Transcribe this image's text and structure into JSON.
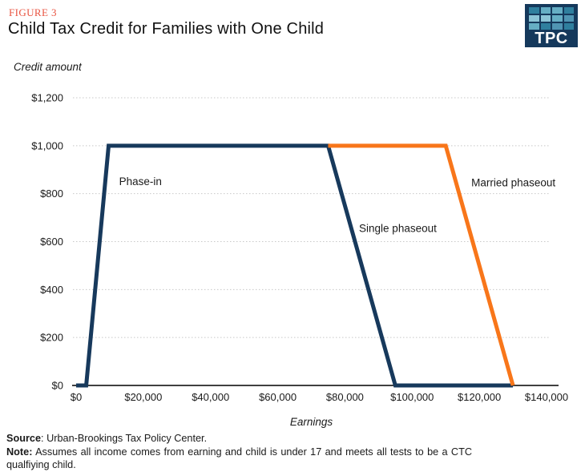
{
  "figure_label": "FIGURE 3",
  "title": "Child Tax Credit for Families with One Child",
  "logo": {
    "text": "TPC",
    "bg": "#15395C",
    "grid_colors": [
      "#2F7F9E",
      "#66AEC4",
      "#66AEC4",
      "#2F7F9E",
      "#8CC4D6",
      "#8CC4D6",
      "#66AEC4",
      "#5095B3",
      "#66AEC4",
      "#2F7F9E",
      "#5095B3",
      "#2F7F9E"
    ]
  },
  "colors": {
    "navy": "#17395C",
    "orange": "#F8761A",
    "figure_red": "#E85340",
    "grid": "#C8C8C8",
    "axis": "#000000"
  },
  "chart_data": {
    "type": "line",
    "title": "Child Tax Credit for Families with One Child",
    "xlabel": "Earnings",
    "ylabel": "Credit amount",
    "xlim": [
      0,
      140000
    ],
    "ylim": [
      0,
      1200
    ],
    "grid": "horizontal-dotted",
    "legend": "inline-annotations",
    "x_ticks": [
      {
        "v": 0,
        "label": "$0"
      },
      {
        "v": 20000,
        "label": "$20,000"
      },
      {
        "v": 40000,
        "label": "$40,000"
      },
      {
        "v": 60000,
        "label": "$60,000"
      },
      {
        "v": 80000,
        "label": "$80,000"
      },
      {
        "v": 100000,
        "label": "$100,000"
      },
      {
        "v": 120000,
        "label": "$120,000"
      },
      {
        "v": 140000,
        "label": "$140,000"
      }
    ],
    "y_ticks": [
      {
        "v": 0,
        "label": "$0"
      },
      {
        "v": 200,
        "label": "$200"
      },
      {
        "v": 400,
        "label": "$400"
      },
      {
        "v": 600,
        "label": "$600"
      },
      {
        "v": 800,
        "label": "$800"
      },
      {
        "v": 1000,
        "label": "$1,000"
      },
      {
        "v": 1200,
        "label": "$1,200"
      }
    ],
    "series": [
      {
        "name": "single",
        "color": "#17395C",
        "points": [
          [
            0,
            0
          ],
          [
            3000,
            0
          ],
          [
            9667,
            1000
          ],
          [
            75000,
            1000
          ],
          [
            95000,
            0
          ],
          [
            130000,
            0
          ]
        ]
      },
      {
        "name": "married",
        "color": "#F8761A",
        "points": [
          [
            75000,
            1000
          ],
          [
            110000,
            1000
          ],
          [
            130000,
            0
          ]
        ]
      }
    ],
    "annotations": [
      {
        "text": "Phase-in",
        "x": 12800,
        "y": 835
      },
      {
        "text": "Single phaseout",
        "x": 84200,
        "y": 640
      },
      {
        "text": "Married phaseout",
        "x": 117600,
        "y": 830
      }
    ]
  },
  "footer": {
    "source_label": "Source",
    "source_text": ": Urban-Brookings Tax Policy Center.",
    "note_label": "Note:",
    "note_text": "Assumes all income comes from earning and child is under 17 and meets all tests to be a CTC qualfiying child."
  }
}
